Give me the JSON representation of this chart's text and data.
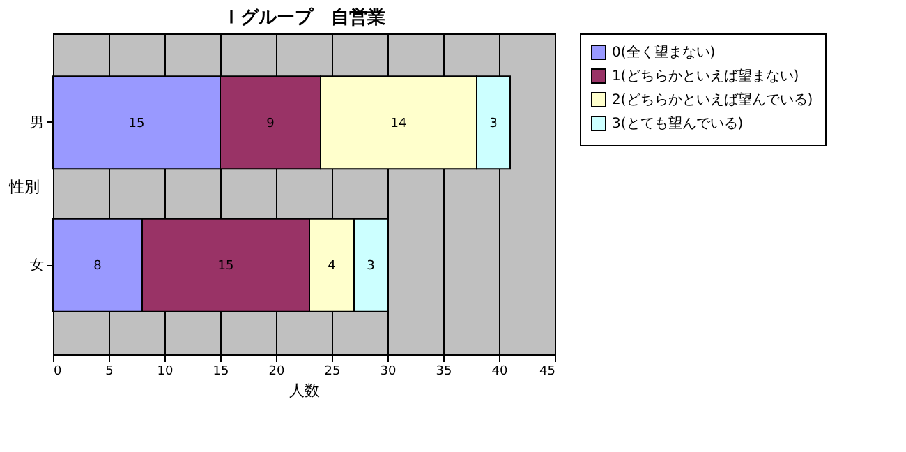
{
  "chart_data": {
    "type": "bar",
    "orientation": "horizontal",
    "stacked": true,
    "title": "Ｉグループ　自営業",
    "xlabel": "人数",
    "ylabel": "性別",
    "categories": [
      "男",
      "女"
    ],
    "series": [
      {
        "name": "0(全く望まない)",
        "color": "#9999ff",
        "values": [
          15,
          8
        ]
      },
      {
        "name": "1(どちらかといえば望まない)",
        "color": "#993366",
        "values": [
          9,
          15
        ]
      },
      {
        "name": "2(どちらかといえば望んでいる)",
        "color": "#ffffcc",
        "values": [
          14,
          4
        ]
      },
      {
        "name": "3(とても望んでいる)",
        "color": "#ccffff",
        "values": [
          3,
          3
        ]
      }
    ],
    "xlim": [
      0,
      45
    ],
    "xticks": [
      0,
      5,
      10,
      15,
      20,
      25,
      30,
      35,
      40,
      45
    ],
    "grid": "x",
    "legend": "right",
    "data_labels": true
  }
}
